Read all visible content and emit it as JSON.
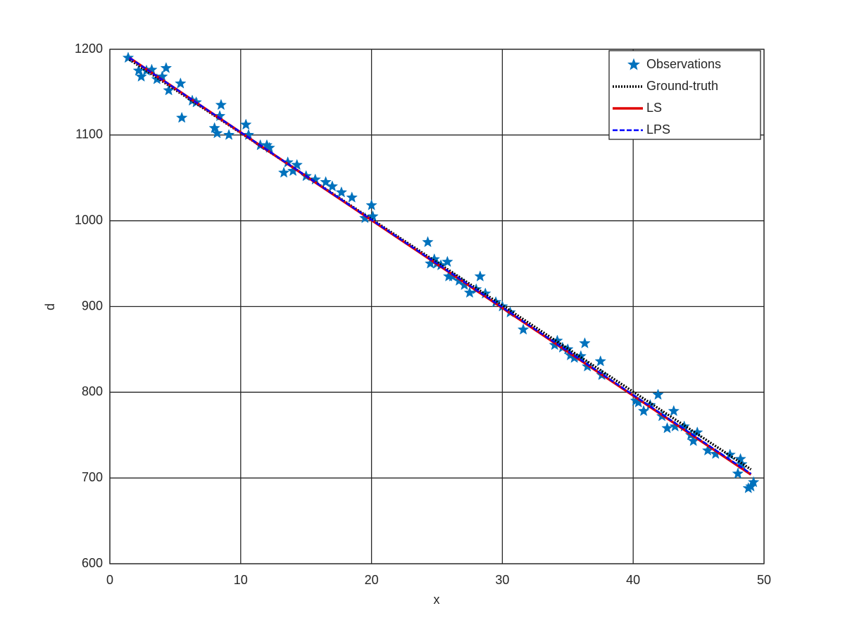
{
  "chart_data": {
    "type": "scatter",
    "x_label": "x",
    "y_label": "d",
    "xlim": [
      0,
      50
    ],
    "ylim": [
      600,
      1200
    ],
    "xticks": [
      0,
      10,
      20,
      30,
      40,
      50
    ],
    "yticks": [
      600,
      700,
      800,
      900,
      1000,
      1100,
      1200
    ],
    "grid": true,
    "legend": "northeast",
    "series": [
      {
        "name": "Observations",
        "color": "#0072bd",
        "marker": "star",
        "x": [
          1.4,
          2.2,
          2.4,
          2.8,
          3.2,
          3.6,
          4.0,
          4.3,
          4.5,
          5.4,
          5.5,
          6.3,
          6.6,
          8.0,
          8.2,
          8.4,
          8.5,
          9.1,
          10.4,
          10.6,
          11.5,
          12.0,
          12.2,
          13.3,
          13.6,
          14.0,
          14.3,
          15.0,
          15.7,
          16.5,
          17.0,
          17.7,
          18.5,
          19.5,
          20.0,
          20.1,
          24.3,
          24.5,
          24.8,
          25.0,
          25.3,
          25.8,
          25.9,
          26.2,
          26.7,
          27.1,
          27.5,
          28.0,
          28.3,
          28.7,
          29.5,
          30.0,
          30.6,
          31.6,
          34.0,
          34.2,
          34.6,
          35.0,
          35.2,
          35.5,
          36.0,
          36.3,
          36.5,
          37.5,
          37.6,
          40.2,
          40.4,
          40.8,
          41.3,
          41.9,
          42.2,
          42.6,
          43.1,
          43.2,
          43.9,
          44.4,
          44.6,
          44.9,
          45.7,
          46.3,
          47.4,
          48.0,
          48.2,
          48.3,
          48.8,
          49.0,
          49.2
        ],
        "values": [
          1190,
          1175,
          1168,
          1175,
          1176,
          1165,
          1168,
          1178,
          1152,
          1160,
          1120,
          1140,
          1138,
          1108,
          1102,
          1122,
          1135,
          1100,
          1112,
          1100,
          1088,
          1088,
          1085,
          1056,
          1068,
          1058,
          1065,
          1052,
          1048,
          1045,
          1040,
          1033,
          1027,
          1003,
          1018,
          1005,
          975,
          950,
          955,
          950,
          948,
          952,
          935,
          935,
          930,
          925,
          916,
          920,
          935,
          915,
          905,
          900,
          893,
          873,
          855,
          860,
          852,
          850,
          843,
          840,
          842,
          857,
          830,
          836,
          820,
          790,
          788,
          778,
          785,
          797,
          772,
          758,
          778,
          760,
          760,
          750,
          743,
          753,
          732,
          728,
          727,
          705,
          722,
          716,
          688,
          690,
          695
        ]
      },
      {
        "name": "Ground-truth",
        "color": "#000000",
        "line_style": "dotted",
        "x": [
          1.5,
          49
        ],
        "values": [
          1188,
          710
        ]
      },
      {
        "name": "LS",
        "color": "#e00000",
        "line_style": "solid",
        "x": [
          1.5,
          49
        ],
        "values": [
          1190,
          704
        ]
      },
      {
        "name": "LPS",
        "color": "#0000ff",
        "line_style": "dashed",
        "x": [
          1.5,
          49
        ],
        "values": [
          1190,
          705
        ]
      }
    ]
  }
}
